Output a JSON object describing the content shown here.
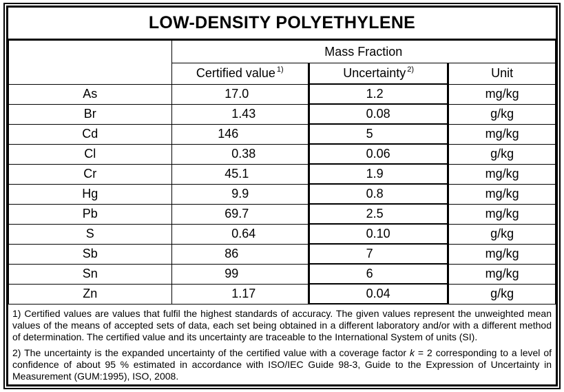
{
  "document": {
    "title": "LOW-DENSITY POLYETHYLENE"
  },
  "table": {
    "group_header": "Mass Fraction",
    "headers": {
      "certified_value": "Certified value",
      "certified_value_note": "1)",
      "uncertainty": "Uncertainty",
      "uncertainty_note": "2)",
      "unit": "Unit"
    },
    "rows": [
      {
        "element": "As",
        "certified_value": "17.0",
        "uncertainty": "1.2",
        "unit": "mg/kg"
      },
      {
        "element": "Br",
        "certified_value": "1.43",
        "uncertainty": "0.08",
        "unit": "g/kg"
      },
      {
        "element": "Cd",
        "certified_value": "146",
        "uncertainty": "5",
        "unit": "mg/kg"
      },
      {
        "element": "Cl",
        "certified_value": "0.38",
        "uncertainty": "0.06",
        "unit": "g/kg"
      },
      {
        "element": "Cr",
        "certified_value": "45.1",
        "uncertainty": "1.9",
        "unit": "mg/kg"
      },
      {
        "element": "Hg",
        "certified_value": "9.9",
        "uncertainty": "0.8",
        "unit": "mg/kg"
      },
      {
        "element": "Pb",
        "certified_value": "69.7",
        "uncertainty": "2.5",
        "unit": "mg/kg"
      },
      {
        "element": "S",
        "certified_value": "0.64",
        "uncertainty": "0.10",
        "unit": "g/kg"
      },
      {
        "element": "Sb",
        "certified_value": "86",
        "uncertainty": "7",
        "unit": "mg/kg"
      },
      {
        "element": "Sn",
        "certified_value": "99",
        "uncertainty": "6",
        "unit": "mg/kg"
      },
      {
        "element": "Zn",
        "certified_value": "1.17",
        "uncertainty": "0.04",
        "unit": "g/kg"
      }
    ]
  },
  "footnotes": {
    "note1": "1) Certified values are values that fulfil the highest standards of accuracy. The given values represent the unweighted mean values of the means of accepted sets of data, each set being obtained in a different laboratory and/or with a different method of determination. The certified value and its uncertainty are traceable to the International System of units (SI).",
    "note2_pre": "2) The uncertainty is the expanded uncertainty of the certified value with a coverage factor ",
    "note2_k": "k",
    "note2_post": " = 2 corresponding to a level of confidence of about 95 % estimated in accordance with ISO/IEC Guide 98-3, Guide to the Expression of Uncertainty in Measurement (GUM:1995), ISO, 2008."
  },
  "colors": {
    "border": "#000000",
    "background": "#ffffff",
    "text": "#000000"
  }
}
